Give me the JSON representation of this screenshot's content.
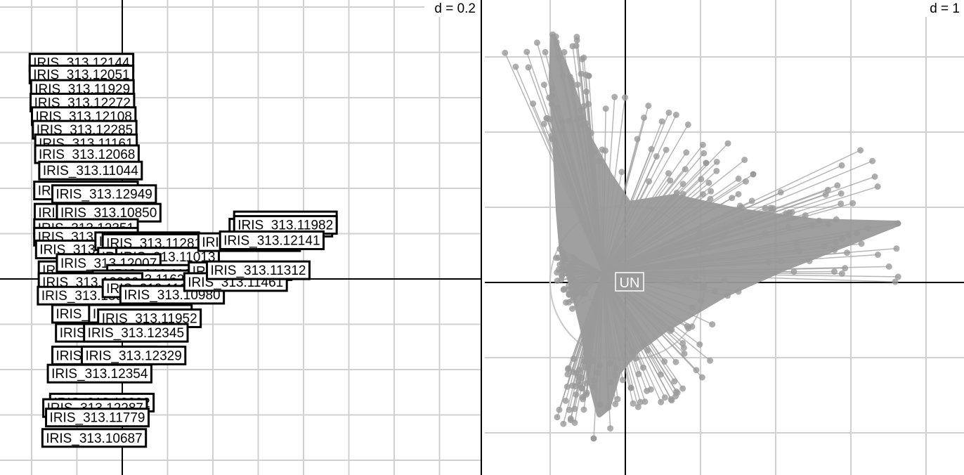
{
  "chart_data": [
    {
      "type": "scatter",
      "panel": "left",
      "scale_label": "d = 0.2",
      "grid": true,
      "labels": [
        {
          "text": "IRIS_313.12144",
          "x": -0.09,
          "y": 0.478
        },
        {
          "text": "IRIS_313.12051",
          "x": -0.09,
          "y": 0.452
        },
        {
          "text": "IRIS_313.11929",
          "x": -0.088,
          "y": 0.42
        },
        {
          "text": "IRIS_313.12272",
          "x": -0.088,
          "y": 0.39
        },
        {
          "text": "IRIS_313.12108",
          "x": -0.085,
          "y": 0.36
        },
        {
          "text": "IRIS_313.12285",
          "x": -0.083,
          "y": 0.33
        },
        {
          "text": "IRIS_313.11161",
          "x": -0.08,
          "y": 0.3
        },
        {
          "text": "IRIS_313.12068",
          "x": -0.078,
          "y": 0.276
        },
        {
          "text": "IRIS_313.11044",
          "x": -0.07,
          "y": 0.24
        },
        {
          "text": "IRIS_313.12164",
          "x": -0.08,
          "y": 0.196
        },
        {
          "text": "IRIS_313.12949",
          "x": -0.04,
          "y": 0.188
        },
        {
          "text": "IRIS_313.11832",
          "x": -0.08,
          "y": 0.147
        },
        {
          "text": "IRIS_313.10850",
          "x": -0.03,
          "y": 0.147
        },
        {
          "text": "IRIS_313.12351",
          "x": -0.08,
          "y": 0.113
        },
        {
          "text": "IRIS_313.12353",
          "x": -0.08,
          "y": 0.094
        },
        {
          "text": "IRIS_313.12265",
          "x": -0.076,
          "y": 0.066
        },
        {
          "text": "IRIS_313.10883",
          "x": 0.055,
          "y": 0.084
        },
        {
          "text": "IRIS_313.11281",
          "x": 0.07,
          "y": 0.08
        },
        {
          "text": "IRIS_313.11068",
          "x": 0.06,
          "y": 0.05
        },
        {
          "text": "IRIS_313.11013",
          "x": 0.1,
          "y": 0.05
        },
        {
          "text": "IRIS_313.12060",
          "x": -0.07,
          "y": 0.02
        },
        {
          "text": "IRIS_313.12007",
          "x": -0.03,
          "y": 0.036
        },
        {
          "text": "IRIS_313.11031",
          "x": 0.08,
          "y": 0.012
        },
        {
          "text": "IRIS_313.11626",
          "x": 0.048,
          "y": 0.0
        },
        {
          "text": "IRIS_313.12300",
          "x": -0.07,
          "y": -0.006
        },
        {
          "text": "IRIS_313.15904",
          "x": -0.072,
          "y": -0.036
        },
        {
          "text": "IRIS_313.11643",
          "x": 0.07,
          "y": -0.02
        },
        {
          "text": "IRIS_313.10980",
          "x": 0.11,
          "y": -0.034
        },
        {
          "text": "IRIS_313.12234",
          "x": -0.04,
          "y": -0.076
        },
        {
          "text": "IRIS_313.11916",
          "x": 0.04,
          "y": -0.076
        },
        {
          "text": "IRIS_313.11952",
          "x": 0.06,
          "y": -0.086
        },
        {
          "text": "IRIS_313.12300",
          "x": -0.032,
          "y": -0.118
        },
        {
          "text": "IRIS_313.12345",
          "x": 0.03,
          "y": -0.118
        },
        {
          "text": "IRIS_313.12355",
          "x": -0.04,
          "y": -0.168
        },
        {
          "text": "IRIS_313.12329",
          "x": 0.025,
          "y": -0.168
        },
        {
          "text": "IRIS_313.12354",
          "x": -0.05,
          "y": -0.208
        },
        {
          "text": "IRIS_313.12222",
          "x": -0.045,
          "y": -0.272
        },
        {
          "text": "IRIS_313.12287",
          "x": -0.06,
          "y": -0.284
        },
        {
          "text": "IRIS_313.11779",
          "x": -0.055,
          "y": -0.305
        },
        {
          "text": "IRIS_313.10687",
          "x": -0.062,
          "y": -0.35
        },
        {
          "text": "IRIS_313.11181",
          "x": 0.28,
          "y": 0.082
        },
        {
          "text": "IRIS_313.11446",
          "x": 0.36,
          "y": 0.13
        },
        {
          "text": "IRIS_313.11416",
          "x": 0.35,
          "y": 0.114
        },
        {
          "text": "IRIS_313.11982",
          "x": 0.36,
          "y": 0.12
        },
        {
          "text": "IRIS_313.12141",
          "x": 0.33,
          "y": 0.086
        },
        {
          "text": "IRIS_313.11277",
          "x": 0.26,
          "y": 0.018
        },
        {
          "text": "IRIS_313.11461",
          "x": 0.25,
          "y": -0.006
        },
        {
          "text": "IRIS_313.11312",
          "x": 0.3,
          "y": 0.02
        }
      ]
    },
    {
      "type": "scatter",
      "panel": "right",
      "scale_label": "d = 1",
      "grid": true,
      "class_label": "UN",
      "point_color": "#9a9a9a"
    }
  ]
}
